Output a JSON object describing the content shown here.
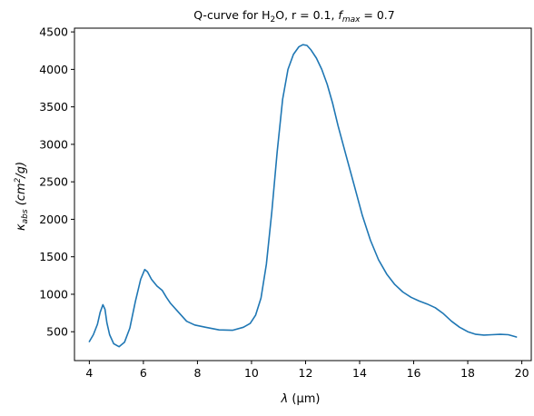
{
  "chart_data": {
    "type": "line",
    "title": {
      "prefix": "Q-curve for H",
      "sub": "2",
      "suffix": "O, r = 0.1, ",
      "f_symbol": "f",
      "f_sub": "max",
      "f_value": " = 0.7"
    },
    "xlabel": {
      "symbol": "λ",
      "unit": "(μm)"
    },
    "ylabel": {
      "symbol": "κ",
      "sub": "abs",
      "unit_open": "(cm",
      "unit_sup": "2",
      "unit_close": "/g)"
    },
    "xlim": [
      3.45,
      20.35
    ],
    "ylim": [
      115,
      4550
    ],
    "xticks": [
      4,
      6,
      8,
      10,
      12,
      14,
      16,
      18,
      20
    ],
    "yticks": [
      500,
      1000,
      1500,
      2000,
      2500,
      3000,
      3500,
      4000,
      4500
    ],
    "grid": false,
    "line_color": "#1f77b4",
    "series": [
      {
        "x": [
          4.0,
          4.15,
          4.3,
          4.4,
          4.5,
          4.58,
          4.65,
          4.75,
          4.9,
          5.1,
          5.3,
          5.5,
          5.7,
          5.9,
          6.05,
          6.15,
          6.3,
          6.5,
          6.7,
          6.85,
          7.0,
          7.3,
          7.6,
          7.9,
          8.3,
          8.8,
          9.3,
          9.7,
          9.95,
          10.15,
          10.35,
          10.55,
          10.75,
          10.95,
          11.15,
          11.35,
          11.55,
          11.75,
          11.9,
          12.05,
          12.2,
          12.4,
          12.6,
          12.8,
          13.0,
          13.2,
          13.5,
          13.8,
          14.1,
          14.4,
          14.7,
          15.0,
          15.3,
          15.6,
          15.9,
          16.2,
          16.5,
          16.8,
          17.1,
          17.4,
          17.7,
          18.0,
          18.3,
          18.6,
          18.9,
          19.2,
          19.5,
          19.8
        ],
        "y": [
          370,
          460,
          600,
          760,
          860,
          800,
          620,
          460,
          340,
          300,
          360,
          550,
          900,
          1200,
          1330,
          1300,
          1200,
          1110,
          1050,
          960,
          880,
          760,
          640,
          590,
          560,
          525,
          520,
          560,
          610,
          720,
          950,
          1400,
          2100,
          2900,
          3600,
          4000,
          4200,
          4300,
          4330,
          4320,
          4260,
          4150,
          4000,
          3800,
          3550,
          3250,
          2850,
          2450,
          2050,
          1720,
          1460,
          1270,
          1130,
          1030,
          960,
          910,
          870,
          820,
          740,
          640,
          560,
          500,
          465,
          455,
          460,
          465,
          460,
          430
        ]
      }
    ]
  }
}
